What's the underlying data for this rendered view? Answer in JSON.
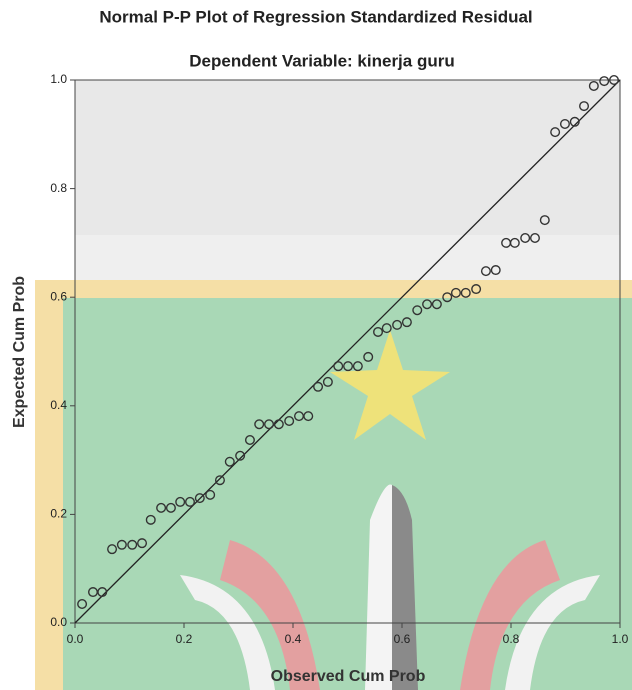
{
  "chart_data": {
    "type": "scatter",
    "title": "Normal P-P Plot of Regression Standardized Residual",
    "subtitle": "Dependent Variable: kinerja guru",
    "x_label": "Observed Cum Prob",
    "y_label": "Expected Cum Prob",
    "color": "#333333",
    "x": [
      0.013,
      0.033,
      0.05,
      0.068,
      0.086,
      0.105,
      0.123,
      0.139,
      0.158,
      0.176,
      0.193,
      0.211,
      0.229,
      0.248,
      0.266,
      0.284,
      0.303,
      0.321,
      0.338,
      0.356,
      0.374,
      0.393,
      0.411,
      0.428,
      0.446,
      0.464,
      0.483,
      0.501,
      0.519,
      0.538,
      0.556,
      0.572,
      0.591,
      0.609,
      0.628,
      0.646,
      0.664,
      0.683,
      0.699,
      0.717,
      0.736,
      0.754,
      0.772,
      0.791,
      0.807,
      0.826,
      0.844,
      0.862,
      0.881,
      0.899,
      0.917,
      0.934,
      0.952,
      0.971,
      0.989
    ],
    "values": [
      0.035,
      0.057,
      0.057,
      0.136,
      0.144,
      0.144,
      0.147,
      0.19,
      0.212,
      0.212,
      0.223,
      0.223,
      0.23,
      0.236,
      0.263,
      0.297,
      0.308,
      0.337,
      0.366,
      0.366,
      0.366,
      0.372,
      0.381,
      0.381,
      0.435,
      0.444,
      0.473,
      0.473,
      0.473,
      0.49,
      0.536,
      0.543,
      0.549,
      0.554,
      0.576,
      0.587,
      0.587,
      0.6,
      0.608,
      0.608,
      0.615,
      0.648,
      0.65,
      0.7,
      0.7,
      0.709,
      0.709,
      0.742,
      0.904,
      0.919,
      0.923,
      0.952,
      0.989,
      0.998,
      1.0
    ],
    "xlim": [
      0,
      1
    ],
    "ylim": [
      0,
      1
    ],
    "xticks": [
      {
        "value": 0,
        "label": "0.0"
      },
      0.2,
      0.4,
      0.6,
      0.8,
      {
        "value": 1,
        "label": "1.0"
      }
    ],
    "yticks": [
      {
        "value": 0,
        "label": "0.0"
      },
      0.2,
      0.4,
      0.6,
      0.8,
      {
        "value": 1,
        "label": "1.0"
      }
    ],
    "reference_line": true
  }
}
